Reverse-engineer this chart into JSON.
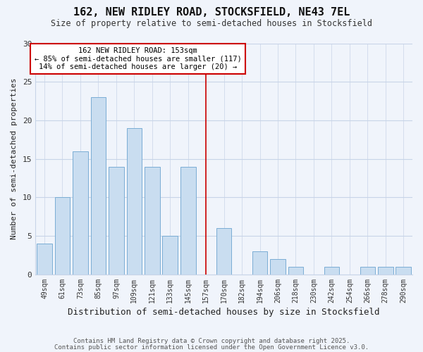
{
  "title1": "162, NEW RIDLEY ROAD, STOCKSFIELD, NE43 7EL",
  "title2": "Size of property relative to semi-detached houses in Stocksfield",
  "xlabel": "Distribution of semi-detached houses by size in Stocksfield",
  "ylabel": "Number of semi-detached properties",
  "bar_labels": [
    "49sqm",
    "61sqm",
    "73sqm",
    "85sqm",
    "97sqm",
    "109sqm",
    "121sqm",
    "133sqm",
    "145sqm",
    "157sqm",
    "170sqm",
    "182sqm",
    "194sqm",
    "206sqm",
    "218sqm",
    "230sqm",
    "242sqm",
    "254sqm",
    "266sqm",
    "278sqm",
    "290sqm"
  ],
  "bar_values": [
    4,
    10,
    16,
    23,
    14,
    19,
    14,
    5,
    14,
    0,
    6,
    0,
    3,
    2,
    1,
    0,
    1,
    0,
    1,
    1,
    1
  ],
  "bar_color": "#c9ddf0",
  "bar_edge_color": "#7aadd4",
  "annotation_title": "162 NEW RIDLEY ROAD: 153sqm",
  "annotation_line1": "← 85% of semi-detached houses are smaller (117)",
  "annotation_line2": "14% of semi-detached houses are larger (20) →",
  "vline_x_index": 9.0,
  "vline_color": "#cc0000",
  "annotation_box_edge_color": "#cc0000",
  "footer1": "Contains HM Land Registry data © Crown copyright and database right 2025.",
  "footer2": "Contains public sector information licensed under the Open Government Licence v3.0.",
  "ylim": [
    0,
    30
  ],
  "yticks": [
    0,
    5,
    10,
    15,
    20,
    25,
    30
  ],
  "background_color": "#f0f4fb",
  "grid_color": "#c8d4e8"
}
